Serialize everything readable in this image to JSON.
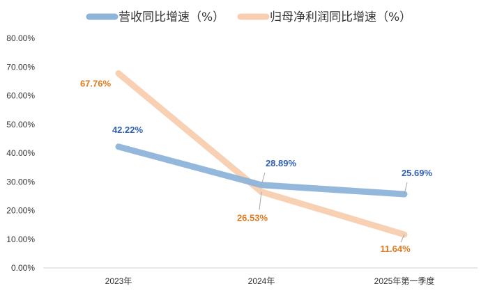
{
  "chart_data": {
    "type": "line",
    "title": "",
    "xlabel": "",
    "ylabel": "",
    "categories": [
      "2023年",
      "2024年",
      "2025年第一季度"
    ],
    "ylim": [
      0,
      80
    ],
    "yticks": [
      "0.00%",
      "10.00%",
      "20.00%",
      "30.00%",
      "40.00%",
      "50.00%",
      "60.00%",
      "70.00%",
      "80.00%"
    ],
    "grid": false,
    "legend": "top-center",
    "series": [
      {
        "name": "营收同比增速（%）",
        "values": [
          42.22,
          28.89,
          25.69
        ],
        "labels": [
          "42.22%",
          "28.89%",
          "25.69%"
        ],
        "color": "#8eb4d9",
        "label_color": "#2f5fb3"
      },
      {
        "name": "归母净利润同比增速（%）",
        "values": [
          67.76,
          26.53,
          11.64
        ],
        "labels": [
          "67.76%",
          "26.53%",
          "11.64%"
        ],
        "color": "#f8cfb0",
        "label_color": "#e07a1f"
      }
    ]
  }
}
